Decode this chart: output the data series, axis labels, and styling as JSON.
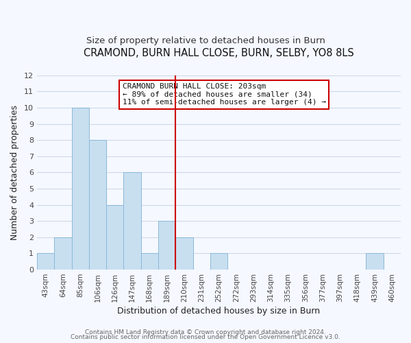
{
  "title": "CRAMOND, BURN HALL CLOSE, BURN, SELBY, YO8 8LS",
  "subtitle": "Size of property relative to detached houses in Burn",
  "xlabel": "Distribution of detached houses by size in Burn",
  "ylabel": "Number of detached properties",
  "bin_labels": [
    "43sqm",
    "64sqm",
    "85sqm",
    "106sqm",
    "126sqm",
    "147sqm",
    "168sqm",
    "189sqm",
    "210sqm",
    "231sqm",
    "252sqm",
    "272sqm",
    "293sqm",
    "314sqm",
    "335sqm",
    "356sqm",
    "377sqm",
    "397sqm",
    "418sqm",
    "439sqm",
    "460sqm"
  ],
  "bar_heights": [
    1,
    2,
    10,
    8,
    4,
    6,
    1,
    3,
    2,
    0,
    1,
    0,
    0,
    0,
    0,
    0,
    0,
    0,
    0,
    1,
    0
  ],
  "bar_color": "#c8dff0",
  "bar_edge_color": "#8ab8d8",
  "vline_x_index": 8,
  "vline_color": "#cc0000",
  "ylim": [
    0,
    12
  ],
  "yticks": [
    0,
    1,
    2,
    3,
    4,
    5,
    6,
    7,
    8,
    9,
    10,
    11,
    12
  ],
  "annotation_text": "CRAMOND BURN HALL CLOSE: 203sqm\n← 89% of detached houses are smaller (34)\n11% of semi-detached houses are larger (4) →",
  "footer_line1": "Contains HM Land Registry data © Crown copyright and database right 2024.",
  "footer_line2": "Contains public sector information licensed under the Open Government Licence v3.0.",
  "background_color": "#f5f8ff",
  "plot_bg_color": "#f5f8ff",
  "grid_color": "#d0d8e8",
  "title_fontsize": 10.5,
  "subtitle_fontsize": 9.5,
  "axis_label_fontsize": 9,
  "tick_fontsize": 7.5,
  "annotation_fontsize": 8,
  "footer_fontsize": 6.5
}
